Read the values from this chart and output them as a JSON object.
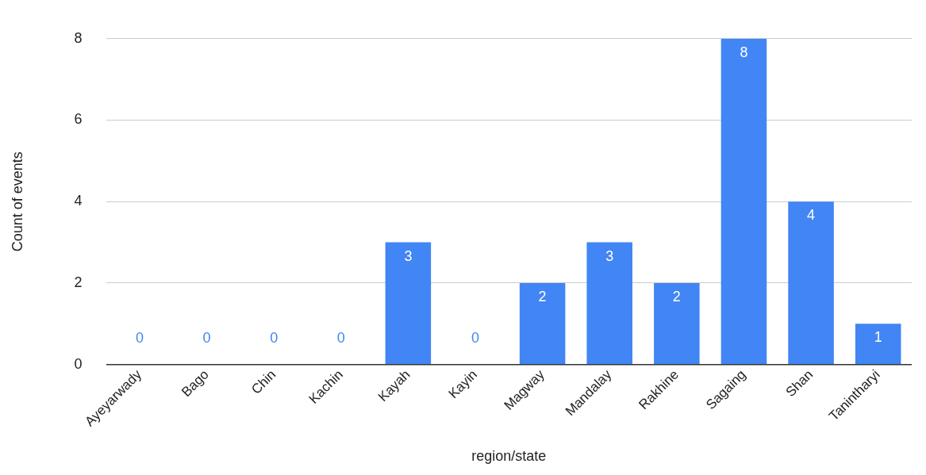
{
  "chart_data": {
    "type": "bar",
    "xlabel": "region/state",
    "ylabel": "Count of events",
    "categories": [
      "Ayeyarwady",
      "Bago",
      "Chin",
      "Kachin",
      "Kayah",
      "Kayin",
      "Magway",
      "Mandalay",
      "Rakhine",
      "Sagaing",
      "Shan",
      "Tanintharyi"
    ],
    "values": [
      0,
      0,
      0,
      0,
      3,
      0,
      2,
      3,
      2,
      8,
      4,
      1
    ],
    "color": "#4285f4",
    "ylim": [
      0,
      8
    ],
    "yticks": [
      0,
      2,
      4,
      6,
      8
    ],
    "grid": "y",
    "legend": false,
    "data_labels": true
  }
}
